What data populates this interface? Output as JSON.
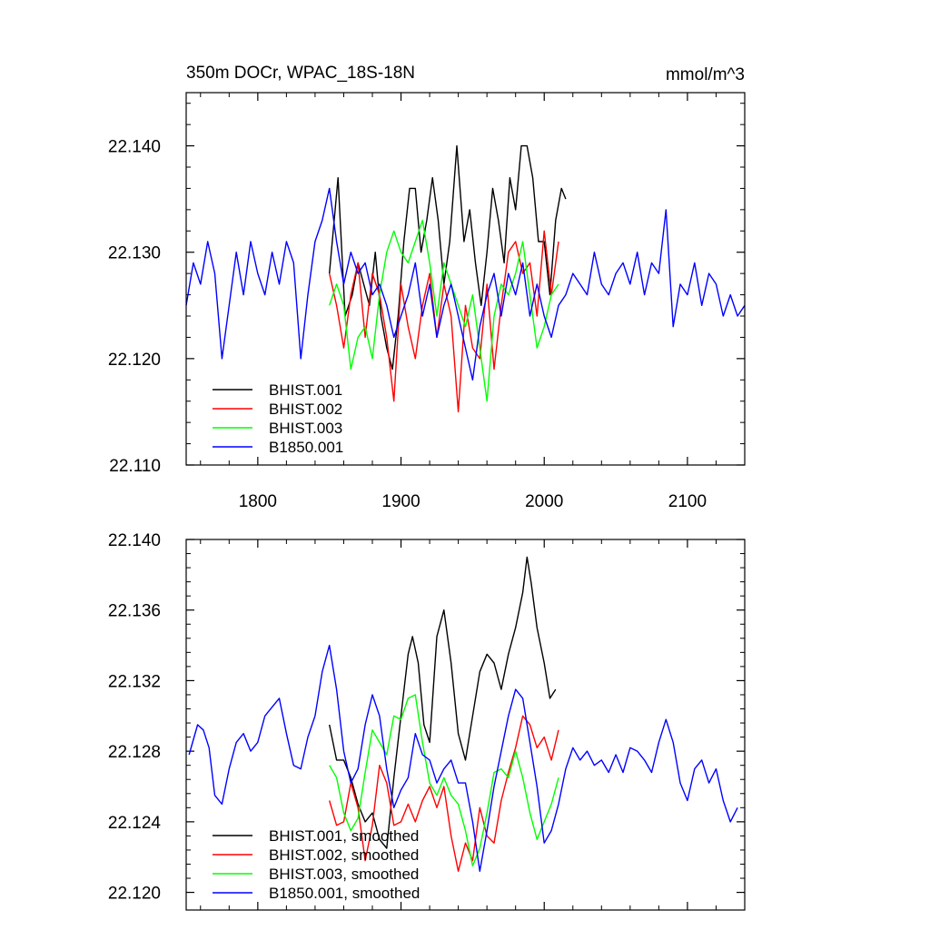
{
  "chart_data": [
    {
      "type": "line",
      "title": "350m DOCr, WPAC_18S-18N",
      "units": "mmol/m^3",
      "xlabel": "",
      "ylabel": "",
      "xlim": [
        1750,
        2140
      ],
      "ylim": [
        22.11,
        22.145
      ],
      "xticks": [
        1800,
        1900,
        2000,
        2100
      ],
      "xtick_labels": [
        "1800",
        "1900",
        "2000",
        "2100"
      ],
      "yticks": [
        22.11,
        22.12,
        22.13,
        22.14
      ],
      "ytick_labels": [
        "22.110",
        "22.120",
        "22.130",
        "22.140"
      ],
      "legend_position": "bottom-left",
      "series": [
        {
          "name": "BHIST.001",
          "color": "#000000",
          "x": [
            1850,
            1856,
            1861,
            1866,
            1870,
            1874,
            1878,
            1882,
            1886,
            1890,
            1894,
            1898,
            1902,
            1906,
            1910,
            1914,
            1918,
            1922,
            1926,
            1930,
            1934,
            1939,
            1944,
            1948,
            1952,
            1956,
            1960,
            1964,
            1968,
            1972,
            1976,
            1980,
            1984,
            1988,
            1992,
            1996,
            2000,
            2004,
            2008,
            2012,
            2015
          ],
          "y": [
            22.128,
            22.137,
            22.124,
            22.126,
            22.129,
            22.127,
            22.125,
            22.13,
            22.124,
            22.121,
            22.119,
            22.124,
            22.131,
            22.136,
            22.136,
            22.13,
            22.133,
            22.137,
            22.133,
            22.127,
            22.131,
            22.14,
            22.131,
            22.134,
            22.129,
            22.125,
            22.13,
            22.136,
            22.133,
            22.129,
            22.137,
            22.134,
            22.14,
            22.14,
            22.137,
            22.131,
            22.131,
            22.126,
            22.133,
            22.136,
            22.135
          ]
        },
        {
          "name": "BHIST.002",
          "color": "#ff0000",
          "x": [
            1850,
            1855,
            1860,
            1865,
            1870,
            1875,
            1880,
            1885,
            1890,
            1895,
            1900,
            1905,
            1910,
            1915,
            1920,
            1925,
            1930,
            1935,
            1940,
            1945,
            1950,
            1955,
            1960,
            1965,
            1970,
            1975,
            1980,
            1985,
            1990,
            1995,
            2000,
            2005,
            2010
          ],
          "y": [
            22.128,
            22.125,
            22.121,
            22.126,
            22.129,
            22.122,
            22.128,
            22.126,
            22.122,
            22.116,
            22.127,
            22.123,
            22.12,
            22.125,
            22.128,
            22.122,
            22.127,
            22.124,
            22.115,
            22.125,
            22.121,
            22.12,
            22.127,
            22.119,
            22.125,
            22.13,
            22.131,
            22.128,
            22.129,
            22.124,
            22.132,
            22.126,
            22.131
          ]
        },
        {
          "name": "BHIST.003",
          "color": "#00ff00",
          "x": [
            1850,
            1855,
            1860,
            1865,
            1870,
            1875,
            1880,
            1885,
            1890,
            1895,
            1900,
            1905,
            1910,
            1915,
            1920,
            1925,
            1930,
            1935,
            1940,
            1945,
            1950,
            1955,
            1960,
            1965,
            1970,
            1975,
            1980,
            1985,
            1990,
            1995,
            2000,
            2005,
            2010
          ],
          "y": [
            22.125,
            22.127,
            22.125,
            22.119,
            22.122,
            22.123,
            22.12,
            22.126,
            22.13,
            22.132,
            22.13,
            22.129,
            22.131,
            22.133,
            22.129,
            22.124,
            22.129,
            22.127,
            22.125,
            22.123,
            22.126,
            22.121,
            22.116,
            22.124,
            22.127,
            22.126,
            22.128,
            22.131,
            22.126,
            22.121,
            22.123,
            22.126,
            22.127
          ]
        },
        {
          "name": "B1850.001",
          "color": "#0000ff",
          "x": [
            1750,
            1755,
            1760,
            1765,
            1770,
            1775,
            1780,
            1785,
            1790,
            1795,
            1800,
            1805,
            1810,
            1815,
            1820,
            1825,
            1830,
            1835,
            1840,
            1845,
            1850,
            1855,
            1860,
            1865,
            1870,
            1875,
            1880,
            1885,
            1890,
            1895,
            1900,
            1905,
            1910,
            1915,
            1920,
            1925,
            1930,
            1935,
            1940,
            1945,
            1950,
            1955,
            1960,
            1965,
            1970,
            1975,
            1980,
            1985,
            1990,
            1995,
            2000,
            2005,
            2010,
            2015,
            2020,
            2025,
            2030,
            2035,
            2040,
            2045,
            2050,
            2055,
            2060,
            2065,
            2070,
            2075,
            2080,
            2085,
            2090,
            2095,
            2100,
            2105,
            2110,
            2115,
            2120,
            2125,
            2130,
            2135,
            2140
          ],
          "y": [
            22.125,
            22.129,
            22.127,
            22.131,
            22.128,
            22.12,
            22.125,
            22.13,
            22.126,
            22.131,
            22.128,
            22.126,
            22.13,
            22.127,
            22.131,
            22.129,
            22.12,
            22.126,
            22.131,
            22.133,
            22.136,
            22.131,
            22.127,
            22.13,
            22.128,
            22.129,
            22.126,
            22.127,
            22.125,
            22.122,
            22.124,
            22.126,
            22.129,
            22.124,
            22.127,
            22.122,
            22.125,
            22.127,
            22.124,
            22.121,
            22.118,
            22.123,
            22.126,
            22.128,
            22.124,
            22.128,
            22.126,
            22.129,
            22.124,
            22.127,
            22.124,
            22.122,
            22.125,
            22.126,
            22.128,
            22.127,
            22.126,
            22.13,
            22.127,
            22.126,
            22.128,
            22.129,
            22.127,
            22.13,
            22.126,
            22.129,
            22.128,
            22.134,
            22.123,
            22.127,
            22.126,
            22.129,
            22.125,
            22.128,
            22.127,
            22.124,
            22.126,
            22.124,
            22.125
          ]
        }
      ]
    },
    {
      "type": "line",
      "title": "",
      "xlabel": "",
      "ylabel": "",
      "xlim": [
        1750,
        2140
      ],
      "ylim": [
        22.119,
        22.14
      ],
      "xticks": [
        1800,
        1900,
        2000,
        2100
      ],
      "yticks": [
        22.12,
        22.124,
        22.128,
        22.132,
        22.136,
        22.14
      ],
      "ytick_labels": [
        "22.120",
        "22.124",
        "22.128",
        "22.132",
        "22.136",
        "22.140"
      ],
      "legend_position": "bottom-left",
      "series": [
        {
          "name": "BHIST.001, smoothed",
          "color": "#000000",
          "x": [
            1850,
            1855,
            1860,
            1865,
            1870,
            1875,
            1880,
            1885,
            1890,
            1895,
            1900,
            1905,
            1908,
            1912,
            1916,
            1920,
            1925,
            1930,
            1935,
            1940,
            1945,
            1950,
            1955,
            1960,
            1965,
            1970,
            1975,
            1980,
            1985,
            1988,
            1991,
            1995,
            2000,
            2004,
            2008
          ],
          "y": [
            22.1295,
            22.1275,
            22.1275,
            22.1265,
            22.125,
            22.124,
            22.1245,
            22.123,
            22.1225,
            22.1265,
            22.13,
            22.1335,
            22.1345,
            22.133,
            22.1295,
            22.1285,
            22.1345,
            22.136,
            22.133,
            22.129,
            22.1275,
            22.13,
            22.1325,
            22.1335,
            22.133,
            22.1315,
            22.1335,
            22.135,
            22.137,
            22.139,
            22.1375,
            22.135,
            22.133,
            22.131,
            22.1315
          ]
        },
        {
          "name": "BHIST.002, smoothed",
          "color": "#ff0000",
          "x": [
            1850,
            1855,
            1860,
            1865,
            1870,
            1875,
            1880,
            1885,
            1890,
            1895,
            1900,
            1905,
            1910,
            1915,
            1920,
            1925,
            1930,
            1935,
            1940,
            1945,
            1950,
            1955,
            1960,
            1965,
            1970,
            1975,
            1980,
            1985,
            1990,
            1995,
            2000,
            2005,
            2010
          ],
          "y": [
            22.1252,
            22.1238,
            22.124,
            22.1262,
            22.1248,
            22.1218,
            22.1238,
            22.1272,
            22.1262,
            22.1238,
            22.124,
            22.125,
            22.124,
            22.1252,
            22.126,
            22.1248,
            22.126,
            22.1232,
            22.1212,
            22.1228,
            22.1218,
            22.1248,
            22.1232,
            22.1228,
            22.1252,
            22.1268,
            22.1282,
            22.13,
            22.1295,
            22.1282,
            22.1288,
            22.1275,
            22.1292
          ]
        },
        {
          "name": "BHIST.003, smoothed",
          "color": "#00ff00",
          "x": [
            1850,
            1855,
            1860,
            1865,
            1870,
            1875,
            1880,
            1885,
            1890,
            1895,
            1900,
            1905,
            1910,
            1915,
            1920,
            1925,
            1930,
            1935,
            1940,
            1945,
            1950,
            1955,
            1960,
            1965,
            1970,
            1975,
            1980,
            1985,
            1990,
            1995,
            2000,
            2005,
            2010
          ],
          "y": [
            22.1272,
            22.1265,
            22.1245,
            22.1235,
            22.1242,
            22.1268,
            22.1292,
            22.1285,
            22.1278,
            22.13,
            22.1298,
            22.131,
            22.1312,
            22.1285,
            22.1262,
            22.1255,
            22.1265,
            22.1255,
            22.125,
            22.1235,
            22.1215,
            22.1225,
            22.1245,
            22.1268,
            22.127,
            22.1265,
            22.128,
            22.1265,
            22.1245,
            22.123,
            22.124,
            22.125,
            22.1265
          ]
        },
        {
          "name": "B1850.001, smoothed",
          "color": "#0000ff",
          "x": [
            1752,
            1758,
            1762,
            1766,
            1770,
            1775,
            1780,
            1785,
            1790,
            1795,
            1800,
            1805,
            1810,
            1815,
            1820,
            1825,
            1830,
            1835,
            1840,
            1845,
            1850,
            1855,
            1860,
            1865,
            1870,
            1875,
            1880,
            1885,
            1890,
            1895,
            1900,
            1905,
            1910,
            1915,
            1920,
            1925,
            1930,
            1935,
            1940,
            1945,
            1950,
            1955,
            1960,
            1965,
            1970,
            1975,
            1980,
            1985,
            1990,
            1995,
            2000,
            2005,
            2010,
            2015,
            2020,
            2025,
            2030,
            2035,
            2040,
            2045,
            2050,
            2055,
            2060,
            2065,
            2070,
            2075,
            2080,
            2085,
            2090,
            2095,
            2100,
            2105,
            2110,
            2115,
            2120,
            2125,
            2130,
            2135
          ],
          "y": [
            22.1278,
            22.1295,
            22.1292,
            22.1282,
            22.1255,
            22.125,
            22.127,
            22.1285,
            22.129,
            22.128,
            22.1285,
            22.13,
            22.1305,
            22.131,
            22.129,
            22.1272,
            22.127,
            22.1288,
            22.13,
            22.1325,
            22.134,
            22.1315,
            22.128,
            22.1262,
            22.127,
            22.1295,
            22.1312,
            22.13,
            22.127,
            22.1248,
            22.1258,
            22.1265,
            22.129,
            22.1278,
            22.1275,
            22.1262,
            22.127,
            22.1275,
            22.1262,
            22.1262,
            22.124,
            22.1212,
            22.1235,
            22.126,
            22.128,
            22.13,
            22.1315,
            22.131,
            22.1285,
            22.126,
            22.1228,
            22.1235,
            22.125,
            22.127,
            22.1282,
            22.1275,
            22.128,
            22.1272,
            22.1275,
            22.1268,
            22.1278,
            22.1268,
            22.1282,
            22.128,
            22.1275,
            22.1268,
            22.1285,
            22.1298,
            22.1285,
            22.1262,
            22.1252,
            22.127,
            22.1275,
            22.1262,
            22.127,
            22.1252,
            22.124,
            22.1248
          ]
        }
      ]
    }
  ]
}
